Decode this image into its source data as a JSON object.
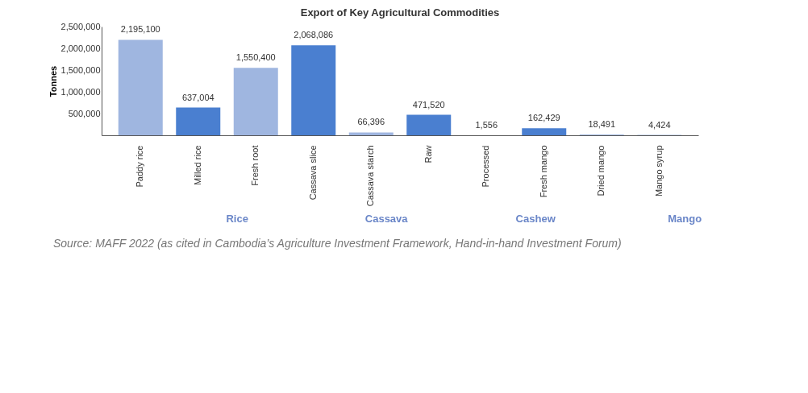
{
  "chart_data": {
    "type": "bar",
    "title": "Export of Key Agricultural Commodities",
    "ylabel": "Tonnes",
    "categories": [
      "Paddy rice",
      "Milled rice",
      "Fresh root",
      "Cassava slice",
      "Cassava starch",
      "Raw",
      "Processed",
      "Fresh mango",
      "Dried mango",
      "Mango syrup"
    ],
    "values": [
      2195100,
      637004,
      1550400,
      2068086,
      66396,
      471520,
      1556,
      162429,
      18491,
      4424
    ],
    "value_labels": [
      "2,195,100",
      "637,004",
      "1,550,400",
      "2,068,086",
      "66,396",
      "471,520",
      "1,556",
      "162,429",
      "18,491",
      "4,424"
    ],
    "colors": [
      "#9fb6e0",
      "#4a7fd0",
      "#9fb6e0",
      "#4a7fd0",
      "#9fb6e0",
      "#4a7fd0",
      "#9fb6e0",
      "#4a7fd0",
      "#9fb6e0",
      "#3f6db8"
    ],
    "ylim": [
      0,
      2500000
    ],
    "yticks": [
      {
        "value": 500000,
        "label": "500,000"
      },
      {
        "value": 1000000,
        "label": "1,000,000"
      },
      {
        "value": 1500000,
        "label": "1,500,000"
      },
      {
        "value": 2000000,
        "label": "2,000,000"
      },
      {
        "value": 2500000,
        "label": "2,500,000"
      }
    ],
    "grid": false,
    "annotations": [
      "Rice",
      "Cassava",
      "Cashew",
      "Mango",
      "Source: MAFF 2022 (as cited in Cambodia’s Agriculture Investment Framework, Hand-in-hand Investment Forum)"
    ]
  }
}
